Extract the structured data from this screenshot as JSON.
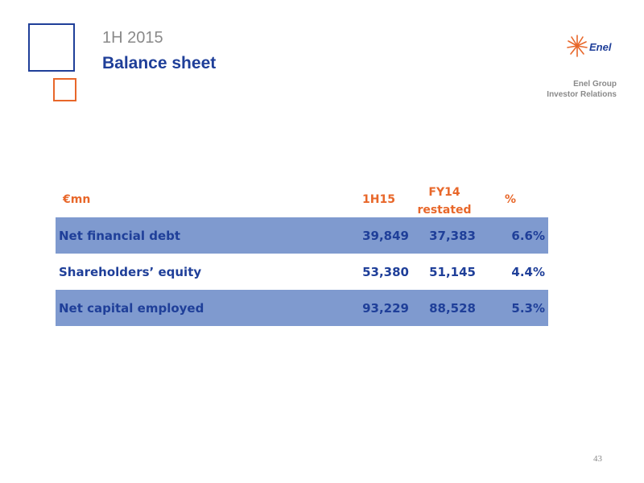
{
  "header": {
    "subtitle": "1H 2015",
    "title": "Balance sheet",
    "logo_text": "Enel",
    "ir_line1": "Enel Group",
    "ir_line2": "Investor Relations"
  },
  "table": {
    "columns": [
      "€mn",
      "1H15",
      "FY14 restated",
      "%"
    ],
    "col2_line1": "FY14",
    "col2_line2": "restated",
    "rows": [
      {
        "label": "Net financial debt",
        "h1_15": "39,849",
        "fy14": "37,383",
        "pct": "6.6%",
        "shaded": true
      },
      {
        "label": "Shareholders’ equity",
        "h1_15": "53,380",
        "fy14": "51,145",
        "pct": "4.4%",
        "shaded": false
      },
      {
        "label": "Net capital employed",
        "h1_15": "93,229",
        "fy14": "88,528",
        "pct": "5.3%",
        "shaded": true
      }
    ]
  },
  "page_number": "43",
  "colors": {
    "brand_blue": "#1f3f99",
    "brand_orange": "#e8672a",
    "row_shade": "#7f9acf",
    "muted_gray": "#8a8a8a"
  }
}
